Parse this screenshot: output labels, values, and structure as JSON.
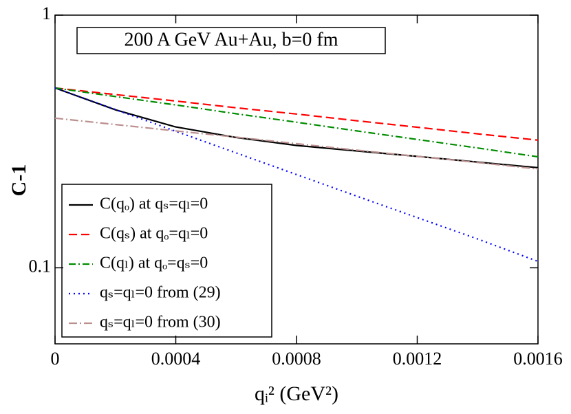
{
  "chart_data": {
    "type": "line",
    "annotation": "200 A GeV Au+Au, b=0 fm",
    "xlabel": "qᵢ² (GeV²)",
    "ylabel": "C-1",
    "x": [
      0,
      0.0002,
      0.0004,
      0.0006,
      0.0008,
      0.001,
      0.0012,
      0.0014,
      0.0016
    ],
    "series": [
      {
        "name": "C(qₒ) at qₛ=qₗ=0",
        "color": "#000000",
        "dash": "none",
        "values": [
          0.515,
          0.422,
          0.361,
          0.328,
          0.305,
          0.29,
          0.276,
          0.262,
          0.249
        ]
      },
      {
        "name": "C(qₛ) at qₒ=qₗ=0",
        "color": "#ff0000",
        "dash": "12 6",
        "values": [
          0.515,
          0.485,
          0.457,
          0.43,
          0.406,
          0.382,
          0.36,
          0.339,
          0.32
        ]
      },
      {
        "name": "C(qₗ) at qₒ=qₛ=0",
        "color": "#008c00",
        "dash": "10 4 2 4",
        "values": [
          0.515,
          0.476,
          0.441,
          0.407,
          0.377,
          0.348,
          0.322,
          0.298,
          0.275
        ]
      },
      {
        "name": "qₛ=qₗ=0 from (29)",
        "color": "#0000ff",
        "dash": "2 5",
        "values": [
          0.515,
          0.423,
          0.347,
          0.285,
          0.234,
          0.192,
          0.158,
          0.13,
          0.106
        ]
      },
      {
        "name": "qₛ=qₗ=0 from (30)",
        "color": "#bc8f8f",
        "dash": "12 4 2 4",
        "values": [
          0.391,
          0.369,
          0.348,
          0.329,
          0.31,
          0.292,
          0.276,
          0.261,
          0.246
        ]
      }
    ],
    "xlim": [
      0,
      0.0016
    ],
    "ylim": [
      0.05,
      1
    ],
    "xticks": [
      0,
      0.0004,
      0.0008,
      0.0012,
      0.0016
    ],
    "yticks": [
      0.1,
      1
    ],
    "log_y": true
  }
}
